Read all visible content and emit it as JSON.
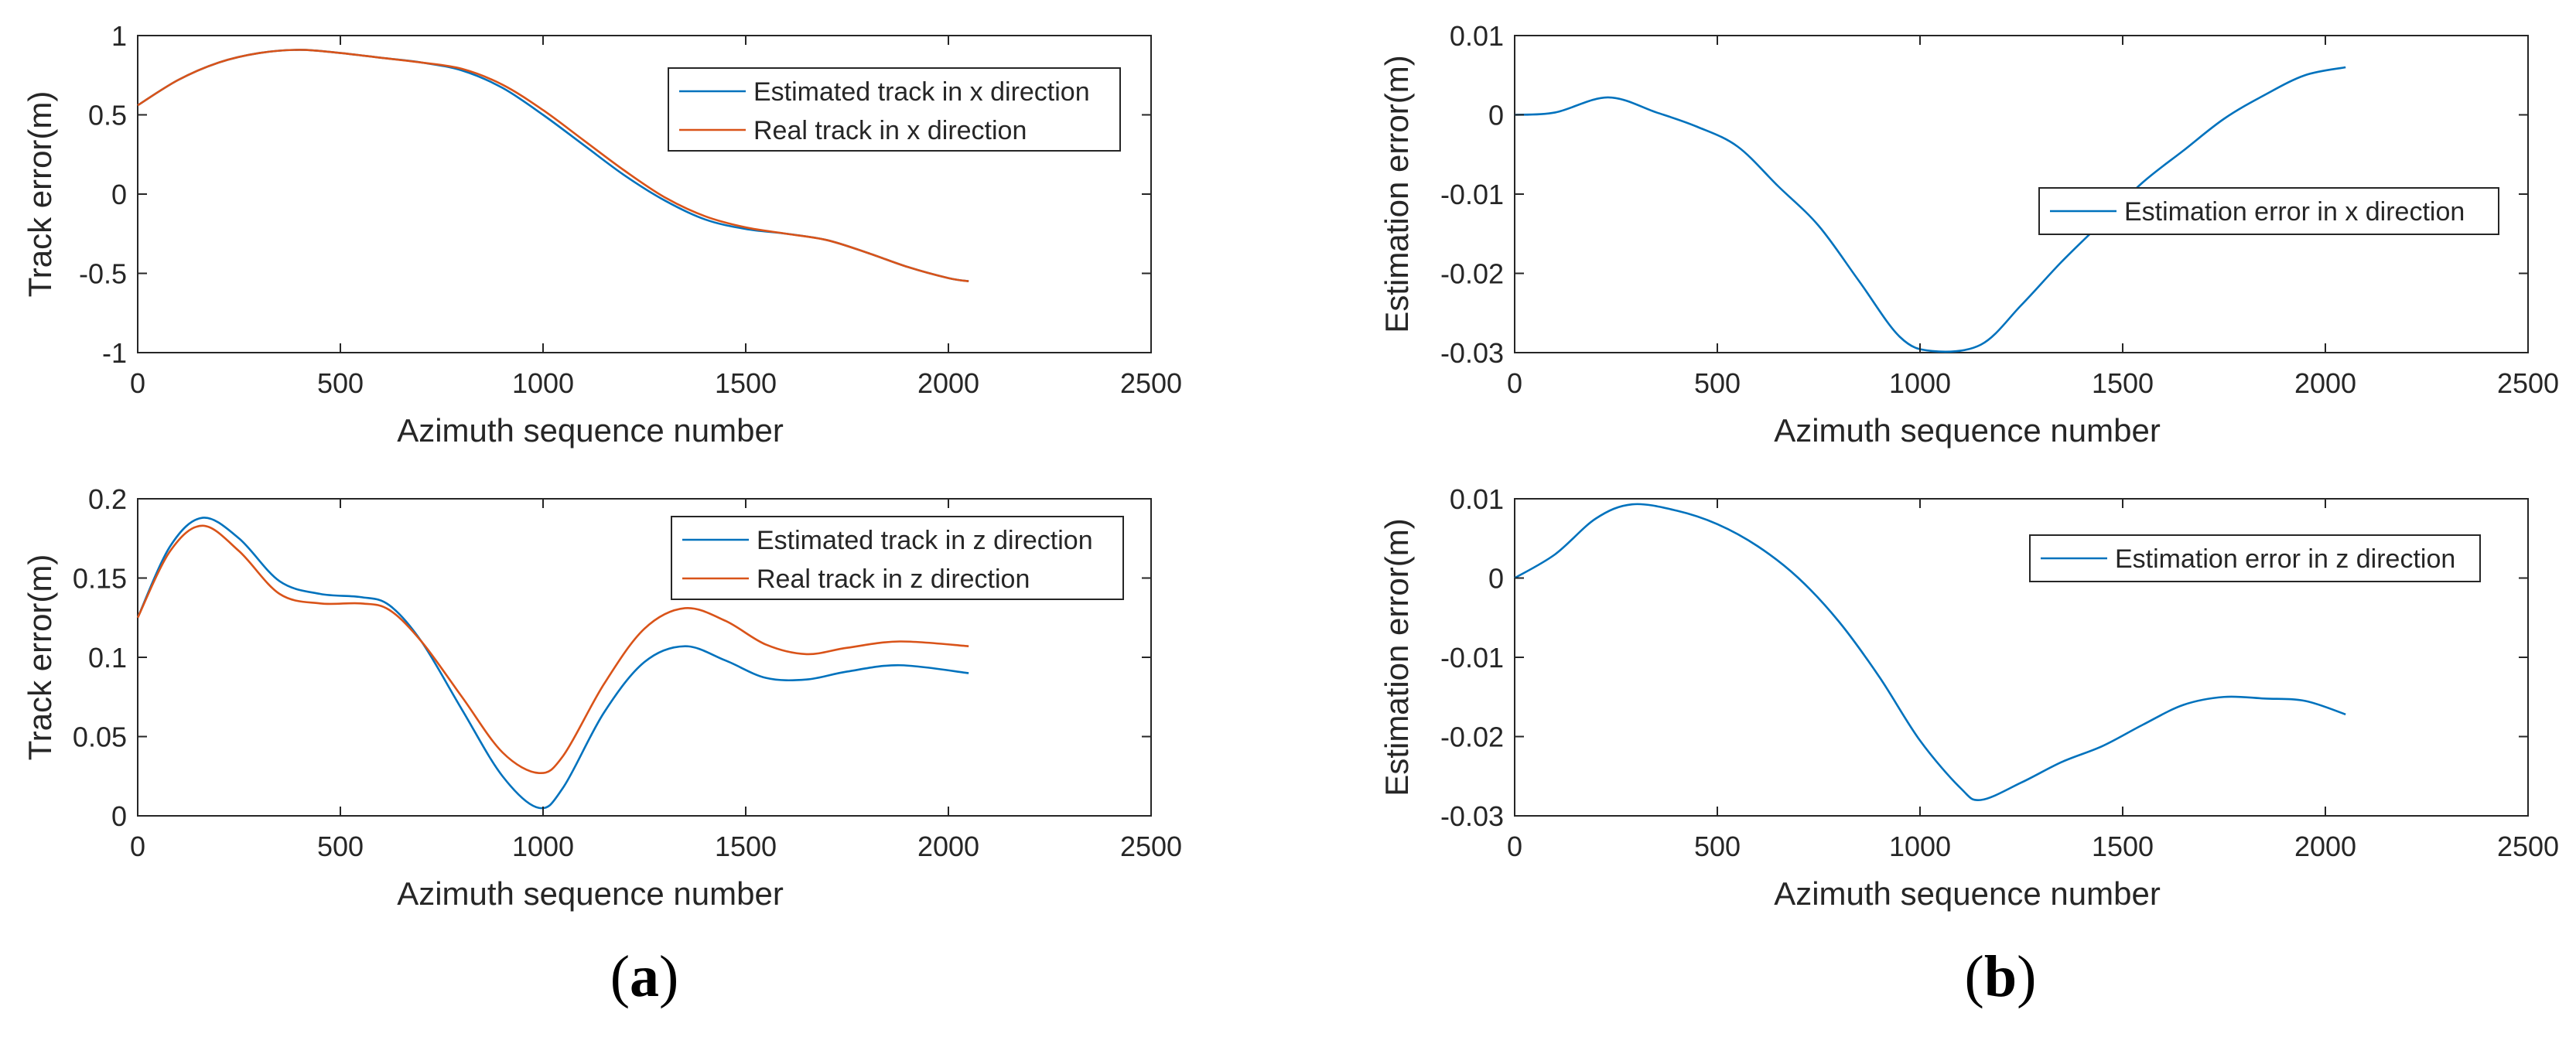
{
  "panel_labels": {
    "a": "a",
    "b": "b"
  },
  "chart_data": [
    {
      "id": "a1",
      "type": "line",
      "title": "",
      "xlabel": "Azimuth sequence number",
      "ylabel": "Track error(m)",
      "xlim": [
        0,
        2500
      ],
      "ylim": [
        -1,
        1
      ],
      "xticks": [
        0,
        500,
        1000,
        1500,
        2000,
        2500
      ],
      "yticks": [
        -1,
        -0.5,
        0,
        0.5,
        1
      ],
      "xtick_labels": [
        "0",
        "500",
        "1000",
        "1500",
        "2000",
        "2500"
      ],
      "ytick_labels": [
        "-1",
        "-0.5",
        "0",
        "0.5",
        "1"
      ],
      "grid": false,
      "legend": "top-right",
      "x": [
        0,
        100,
        200,
        300,
        400,
        500,
        600,
        700,
        800,
        900,
        1000,
        1100,
        1200,
        1300,
        1400,
        1500,
        1600,
        1700,
        1800,
        1900,
        2000,
        2050
      ],
      "series": [
        {
          "name": "Estimated track in x direction",
          "color": "#0072BD",
          "values": [
            0.56,
            0.72,
            0.83,
            0.89,
            0.91,
            0.89,
            0.86,
            0.83,
            0.78,
            0.67,
            0.5,
            0.31,
            0.12,
            -0.04,
            -0.16,
            -0.22,
            -0.25,
            -0.29,
            -0.37,
            -0.46,
            -0.53,
            -0.55
          ]
        },
        {
          "name": "Real track in x direction",
          "color": "#D95319",
          "values": [
            0.56,
            0.72,
            0.83,
            0.89,
            0.91,
            0.89,
            0.86,
            0.83,
            0.79,
            0.69,
            0.53,
            0.34,
            0.15,
            -0.02,
            -0.14,
            -0.21,
            -0.25,
            -0.29,
            -0.37,
            -0.46,
            -0.53,
            -0.55
          ]
        }
      ]
    },
    {
      "id": "a2",
      "type": "line",
      "title": "",
      "xlabel": "Azimuth sequence number",
      "ylabel": "Track error(m)",
      "xlim": [
        0,
        2500
      ],
      "ylim": [
        0,
        0.2
      ],
      "xticks": [
        0,
        500,
        1000,
        1500,
        2000,
        2500
      ],
      "yticks": [
        0,
        0.05,
        0.1,
        0.15,
        0.2
      ],
      "xtick_labels": [
        "0",
        "500",
        "1000",
        "1500",
        "2000",
        "2500"
      ],
      "ytick_labels": [
        "0",
        "0.05",
        "0.1",
        "0.15",
        "0.2"
      ],
      "grid": false,
      "legend": "top-right",
      "x": [
        0,
        80,
        160,
        250,
        350,
        450,
        550,
        620,
        700,
        800,
        900,
        990,
        1050,
        1150,
        1250,
        1350,
        1450,
        1550,
        1650,
        1750,
        1880,
        2050
      ],
      "series": [
        {
          "name": "Estimated track in z direction",
          "color": "#0072BD",
          "values": [
            0.125,
            0.17,
            0.188,
            0.175,
            0.148,
            0.14,
            0.138,
            0.133,
            0.11,
            0.067,
            0.025,
            0.005,
            0.018,
            0.065,
            0.097,
            0.107,
            0.098,
            0.087,
            0.086,
            0.091,
            0.095,
            0.09
          ]
        },
        {
          "name": "Real track in z direction",
          "color": "#D95319",
          "values": [
            0.125,
            0.167,
            0.183,
            0.167,
            0.14,
            0.134,
            0.134,
            0.13,
            0.11,
            0.075,
            0.04,
            0.027,
            0.038,
            0.083,
            0.118,
            0.131,
            0.123,
            0.108,
            0.102,
            0.106,
            0.11,
            0.107
          ]
        }
      ]
    },
    {
      "id": "b1",
      "type": "line",
      "title": "",
      "xlabel": "Azimuth sequence number",
      "ylabel": "Estimation error(m)",
      "xlim": [
        0,
        2500
      ],
      "ylim": [
        -0.03,
        0.01
      ],
      "xticks": [
        0,
        500,
        1000,
        1500,
        2000,
        2500
      ],
      "yticks": [
        -0.03,
        -0.02,
        -0.01,
        0,
        0.01
      ],
      "xtick_labels": [
        "0",
        "500",
        "1000",
        "1500",
        "2000",
        "2500"
      ],
      "ytick_labels": [
        "-0.03",
        "-0.02",
        "-0.01",
        "0",
        "0.01"
      ],
      "grid": false,
      "legend": "center-right",
      "x": [
        0,
        100,
        230,
        350,
        450,
        550,
        650,
        750,
        850,
        950,
        1030,
        1150,
        1250,
        1350,
        1450,
        1550,
        1650,
        1750,
        1850,
        1950,
        2050
      ],
      "series": [
        {
          "name": "Estimation error in x direction",
          "color": "#0072BD",
          "values": [
            0,
            0.0003,
            0.0022,
            0.0003,
            -0.0015,
            -0.004,
            -0.009,
            -0.014,
            -0.021,
            -0.028,
            -0.0298,
            -0.029,
            -0.024,
            -0.0185,
            -0.0135,
            -0.0085,
            -0.0045,
            -0.0005,
            0.0025,
            0.005,
            0.006
          ]
        }
      ]
    },
    {
      "id": "b2",
      "type": "line",
      "title": "",
      "xlabel": "Azimuth sequence number",
      "ylabel": "Estimation error(m)",
      "xlim": [
        0,
        2500
      ],
      "ylim": [
        -0.03,
        0.01
      ],
      "xticks": [
        0,
        500,
        1000,
        1500,
        2000,
        2500
      ],
      "yticks": [
        -0.03,
        -0.02,
        -0.01,
        0,
        0.01
      ],
      "xtick_labels": [
        "0",
        "500",
        "1000",
        "1500",
        "2000",
        "2500"
      ],
      "ytick_labels": [
        "-0.03",
        "-0.02",
        "-0.01",
        "0",
        "0.01"
      ],
      "grid": false,
      "legend": "top-right",
      "x": [
        0,
        100,
        200,
        290,
        400,
        500,
        600,
        700,
        800,
        900,
        1000,
        1100,
        1150,
        1250,
        1350,
        1450,
        1550,
        1650,
        1750,
        1850,
        1950,
        2050
      ],
      "series": [
        {
          "name": "Estimation error in z direction",
          "color": "#0072BD",
          "values": [
            0,
            0.003,
            0.0075,
            0.0093,
            0.0085,
            0.0068,
            0.004,
            0.0,
            -0.0055,
            -0.0125,
            -0.0205,
            -0.0265,
            -0.028,
            -0.0258,
            -0.0232,
            -0.0212,
            -0.0185,
            -0.016,
            -0.015,
            -0.0152,
            -0.0155,
            -0.0172
          ]
        }
      ]
    }
  ]
}
